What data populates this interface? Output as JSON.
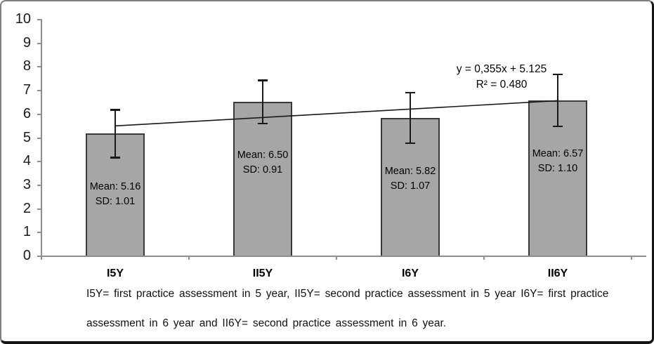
{
  "chart_data": {
    "type": "bar",
    "title": "",
    "xlabel": "",
    "ylabel": "",
    "categories": [
      "I5Y",
      "II5Y",
      "I6Y",
      "II6Y"
    ],
    "series": [
      {
        "name": "Mean",
        "values": [
          5.16,
          6.5,
          5.82,
          6.57
        ]
      }
    ],
    "error_sd": [
      1.01,
      0.91,
      1.07,
      1.1
    ],
    "bar_labels": [
      {
        "line1": "Mean: 5.16",
        "line2": "SD: 1.01"
      },
      {
        "line1": "Mean: 6.50",
        "line2": "SD: 0.91"
      },
      {
        "line1": "Mean: 5.82",
        "line2": "SD: 1.07"
      },
      {
        "line1": "Mean: 6.57",
        "line2": "SD: 1.10"
      }
    ],
    "ylim": [
      0,
      10
    ],
    "yticks": [
      0,
      1,
      2,
      3,
      4,
      5,
      6,
      7,
      8,
      9,
      10
    ],
    "grid": false,
    "legend": "none",
    "bar_color": "#a6a6a6",
    "bar_border_color": "#3a3a3a",
    "axis_color": "#8f8f8f",
    "trendline": {
      "slope": 0.355,
      "intercept": 5.125,
      "equation_label": "y = 0,355x + 5.125",
      "r_squared_label": "R² = 0.480",
      "color": "#1a1a1a"
    },
    "caption_line1": "I5Y= first practice assessment in 5 year, II5Y= second practice assessment in 5 year I6Y= first practice",
    "caption_line2": "assessment in 6 year and II6Y= second practice assessment in 6 year."
  }
}
